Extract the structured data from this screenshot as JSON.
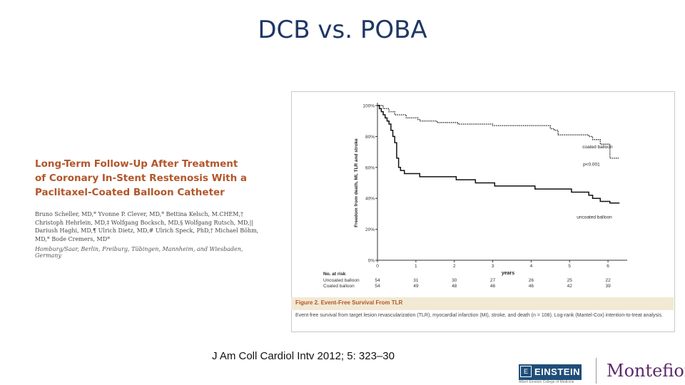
{
  "slide": {
    "title": "DCB vs. POBA",
    "citation": "J Am Coll Cardiol Intv 2012; 5: 323–30"
  },
  "paper": {
    "title": "Long-Term Follow-Up After Treatment of Coronary In-Stent Restenosis With a Paclitaxel-Coated Balloon Catheter",
    "authors": "Bruno Scheller, MD,* Yvonne P. Clever, MD,* Bettina Kelsch, M.CHEM,† Christoph Hehrlein, MD,‡ Wolfgang Bocksch, MD,§ Wolfgang Rutsch, MD,|| Dariush Haghi, MD,¶ Ulrich Dietz, MD,# Ulrich Speck, PhD,† Michael Böhm, MD,* Bode Cremers, MD*",
    "affiliations": "Homburg/Saar, Berlin, Freiburg, Tübingen, Mannheim, and Wiesbaden, Germany"
  },
  "figure": {
    "caption_title": "Figure 2. Event-Free Survival From TLR",
    "caption_text": "Event-free survival from target lesion revascularization (TLR), myocardial infarction (MI), stroke, and death (n = 108). Log-rank (Mantel-Cox) intention-to-treat analysis."
  },
  "chart_data": {
    "type": "line",
    "title": "",
    "xlabel": "years",
    "ylabel": "Freedom from death, MI, TLR and stroke",
    "xlim": [
      0,
      6.5
    ],
    "ylim": [
      0,
      100
    ],
    "x_ticks": [
      "0",
      "1",
      "2",
      "3",
      "4",
      "5",
      "6"
    ],
    "y_ticks": [
      "0%",
      "20%",
      "40%",
      "60%",
      "80%",
      "100%"
    ],
    "grid": false,
    "annotations": {
      "pvalue": "p<0.001"
    },
    "series": [
      {
        "name": "coated balloon",
        "style": "dotted",
        "color": "#333333",
        "points": [
          [
            0,
            100
          ],
          [
            0.1,
            100
          ],
          [
            0.15,
            98
          ],
          [
            0.25,
            98
          ],
          [
            0.3,
            96
          ],
          [
            0.4,
            96
          ],
          [
            0.45,
            94
          ],
          [
            0.7,
            94
          ],
          [
            0.75,
            92
          ],
          [
            1.0,
            92
          ],
          [
            1.05,
            91
          ],
          [
            1.1,
            90
          ],
          [
            1.5,
            90
          ],
          [
            1.55,
            89
          ],
          [
            2.0,
            89
          ],
          [
            2.1,
            88
          ],
          [
            2.9,
            88
          ],
          [
            3.0,
            87
          ],
          [
            4.4,
            87
          ],
          [
            4.5,
            85
          ],
          [
            4.6,
            84
          ],
          [
            4.7,
            81
          ],
          [
            5.4,
            81
          ],
          [
            5.5,
            80
          ],
          [
            5.6,
            78
          ],
          [
            5.75,
            78
          ],
          [
            5.8,
            75
          ],
          [
            6.0,
            75
          ],
          [
            6.05,
            66
          ],
          [
            6.3,
            66
          ]
        ]
      },
      {
        "name": "uncoated balloon",
        "style": "solid",
        "color": "#111111",
        "points": [
          [
            0,
            100
          ],
          [
            0.05,
            98
          ],
          [
            0.1,
            96
          ],
          [
            0.15,
            94
          ],
          [
            0.2,
            92
          ],
          [
            0.25,
            90
          ],
          [
            0.3,
            88
          ],
          [
            0.35,
            84
          ],
          [
            0.4,
            80
          ],
          [
            0.45,
            76
          ],
          [
            0.5,
            66
          ],
          [
            0.55,
            60
          ],
          [
            0.6,
            58
          ],
          [
            0.7,
            56
          ],
          [
            1.0,
            56
          ],
          [
            1.1,
            54
          ],
          [
            2.0,
            54
          ],
          [
            2.05,
            52
          ],
          [
            2.5,
            52
          ],
          [
            2.55,
            50
          ],
          [
            3.0,
            50
          ],
          [
            3.05,
            48
          ],
          [
            4.0,
            48
          ],
          [
            4.1,
            46
          ],
          [
            5.0,
            46
          ],
          [
            5.05,
            44
          ],
          [
            5.4,
            44
          ],
          [
            5.5,
            42
          ],
          [
            5.6,
            40
          ],
          [
            5.7,
            40
          ],
          [
            5.8,
            38
          ],
          [
            6.0,
            38
          ],
          [
            6.05,
            37
          ],
          [
            6.3,
            37
          ]
        ]
      }
    ],
    "risk_table": {
      "heading": "No. at risk",
      "rows": [
        {
          "label": "Uncoated balloon",
          "values": [
            "54",
            "31",
            "30",
            "27",
            "26",
            "25",
            "22"
          ]
        },
        {
          "label": "Coated balloon",
          "values": [
            "54",
            "49",
            "48",
            "46",
            "46",
            "42",
            "39"
          ]
        }
      ]
    }
  },
  "logos": {
    "einstein_mark": "E",
    "einstein": "EINSTEIN",
    "einstein_sub": "Albert Einstein College of Medicine",
    "montefiore": "Montefiore"
  }
}
